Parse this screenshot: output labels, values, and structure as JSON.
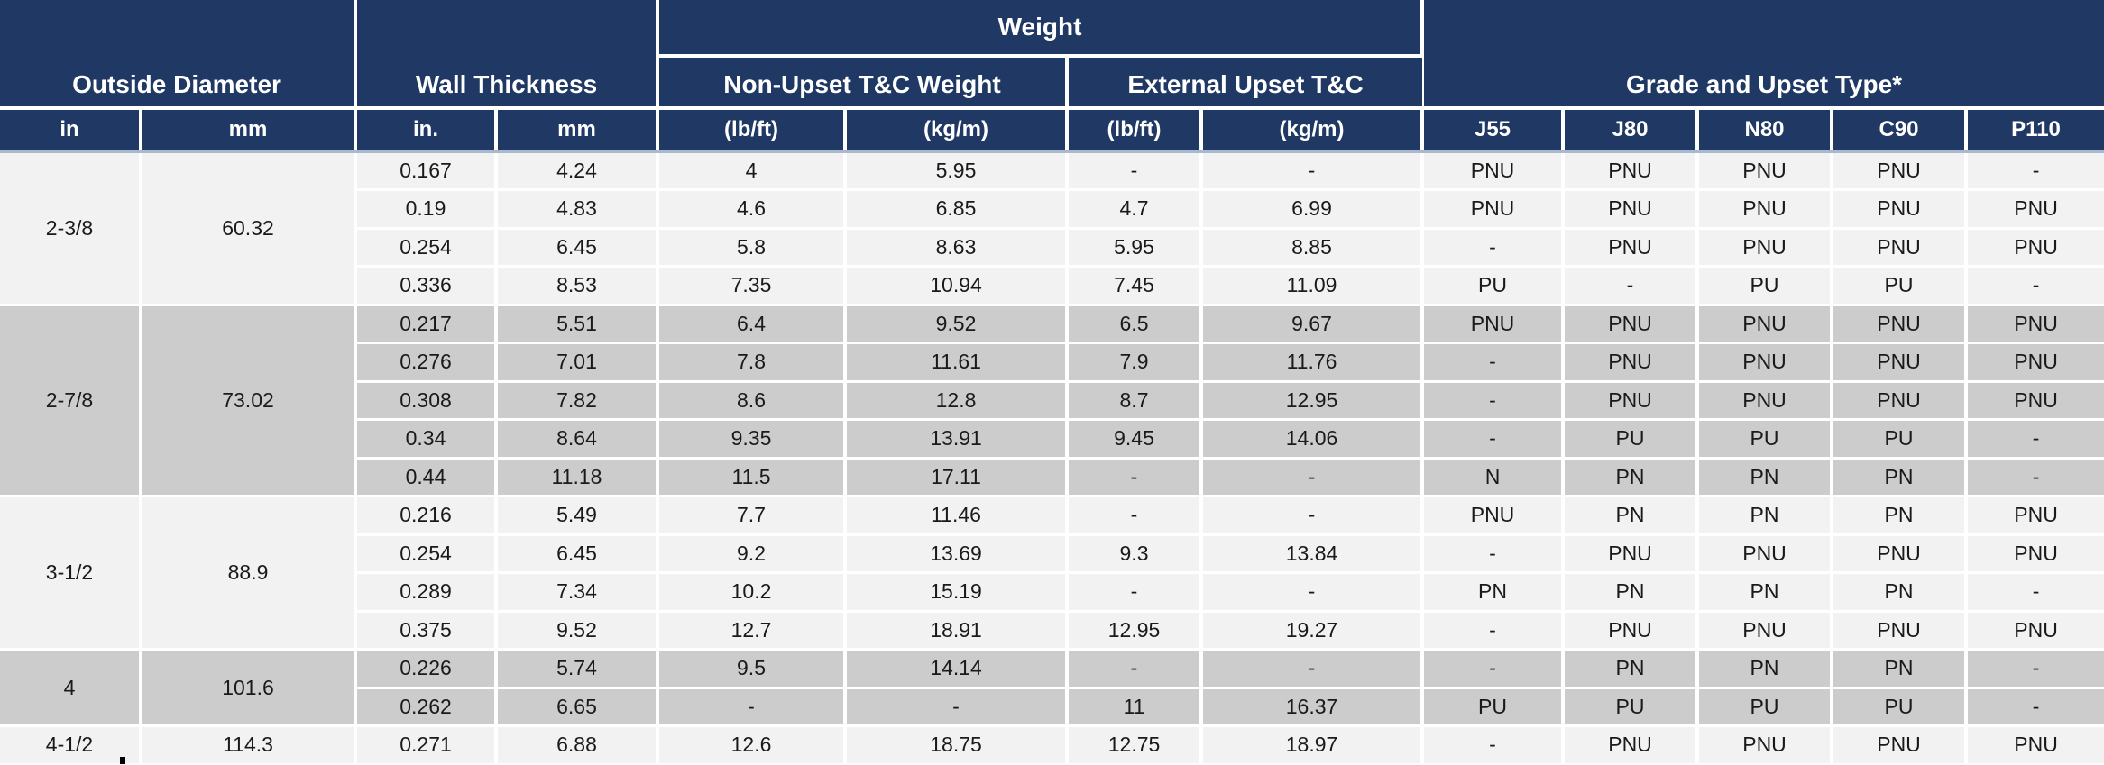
{
  "table": {
    "headers": {
      "outside_diameter": "Outside Diameter",
      "wall_thickness": "Wall Thickness",
      "weight": "Weight",
      "non_upset": "Non-Upset T&C Weight",
      "external_upset": "External Upset T&C",
      "grade_and_upset": "Grade and Upset Type*"
    },
    "units": [
      "in",
      "mm",
      "in.",
      "mm",
      "(lb/ft)",
      "(kg/m)",
      "(lb/ft)",
      "(kg/m)",
      "J55",
      "J80",
      "N80",
      "C90",
      "P110"
    ],
    "groups": [
      {
        "od_in": "2-3/8",
        "od_mm": "60.32",
        "shade": "light",
        "rows": [
          [
            "0.167",
            "4.24",
            "4",
            "5.95",
            "-",
            "-",
            "PNU",
            "PNU",
            "PNU",
            "PNU",
            "-"
          ],
          [
            "0.19",
            "4.83",
            "4.6",
            "6.85",
            "4.7",
            "6.99",
            "PNU",
            "PNU",
            "PNU",
            "PNU",
            "PNU"
          ],
          [
            "0.254",
            "6.45",
            "5.8",
            "8.63",
            "5.95",
            "8.85",
            "-",
            "PNU",
            "PNU",
            "PNU",
            "PNU"
          ],
          [
            "0.336",
            "8.53",
            "7.35",
            "10.94",
            "7.45",
            "11.09",
            "PU",
            "-",
            "PU",
            "PU",
            "-"
          ]
        ]
      },
      {
        "od_in": "2-7/8",
        "od_mm": "73.02",
        "shade": "gray",
        "rows": [
          [
            "0.217",
            "5.51",
            "6.4",
            "9.52",
            "6.5",
            "9.67",
            "PNU",
            "PNU",
            "PNU",
            "PNU",
            "PNU"
          ],
          [
            "0.276",
            "7.01",
            "7.8",
            "11.61",
            "7.9",
            "11.76",
            "-",
            "PNU",
            "PNU",
            "PNU",
            "PNU"
          ],
          [
            "0.308",
            "7.82",
            "8.6",
            "12.8",
            "8.7",
            "12.95",
            "-",
            "PNU",
            "PNU",
            "PNU",
            "PNU"
          ],
          [
            "0.34",
            "8.64",
            "9.35",
            "13.91",
            "9.45",
            "14.06",
            "-",
            "PU",
            "PU",
            "PU",
            "-"
          ],
          [
            "0.44",
            "11.18",
            "11.5",
            "17.11",
            "-",
            "-",
            "N",
            "PN",
            "PN",
            "PN",
            "-"
          ]
        ]
      },
      {
        "od_in": "3-1/2",
        "od_mm": "88.9",
        "shade": "light",
        "rows": [
          [
            "0.216",
            "5.49",
            "7.7",
            "11.46",
            "-",
            "-",
            "PNU",
            "PN",
            "PN",
            "PN",
            "PNU"
          ],
          [
            "0.254",
            "6.45",
            "9.2",
            "13.69",
            "9.3",
            "13.84",
            "-",
            "PNU",
            "PNU",
            "PNU",
            "PNU"
          ],
          [
            "0.289",
            "7.34",
            "10.2",
            "15.19",
            "-",
            "-",
            "PN",
            "PN",
            "PN",
            "PN",
            "-"
          ],
          [
            "0.375",
            "9.52",
            "12.7",
            "18.91",
            "12.95",
            "19.27",
            "-",
            "PNU",
            "PNU",
            "PNU",
            "PNU"
          ]
        ]
      },
      {
        "od_in": "4",
        "od_mm": "101.6",
        "shade": "gray",
        "rows": [
          [
            "0.226",
            "5.74",
            "9.5",
            "14.14",
            "-",
            "-",
            "-",
            "PN",
            "PN",
            "PN",
            "-"
          ],
          [
            "0.262",
            "6.65",
            "-",
            "-",
            "11",
            "16.37",
            "PU",
            "PU",
            "PU",
            "PU",
            "-"
          ]
        ]
      },
      {
        "od_in": "4-1/2",
        "od_mm": "114.3",
        "shade": "light",
        "rows": [
          [
            "0.271",
            "6.88",
            "12.6",
            "18.75",
            "12.75",
            "18.97",
            "-",
            "PNU",
            "PNU",
            "PNU",
            "PNU"
          ]
        ]
      }
    ]
  },
  "colors": {
    "header_bg": "#1f3864",
    "header_text": "#ffffff",
    "row_light": "#f2f2f2",
    "row_gray": "#cccccc",
    "cell_divider": "#ffffff",
    "units_underline": "#a8b8cf",
    "body_text": "#1a1a1a"
  },
  "stray_mark": "."
}
